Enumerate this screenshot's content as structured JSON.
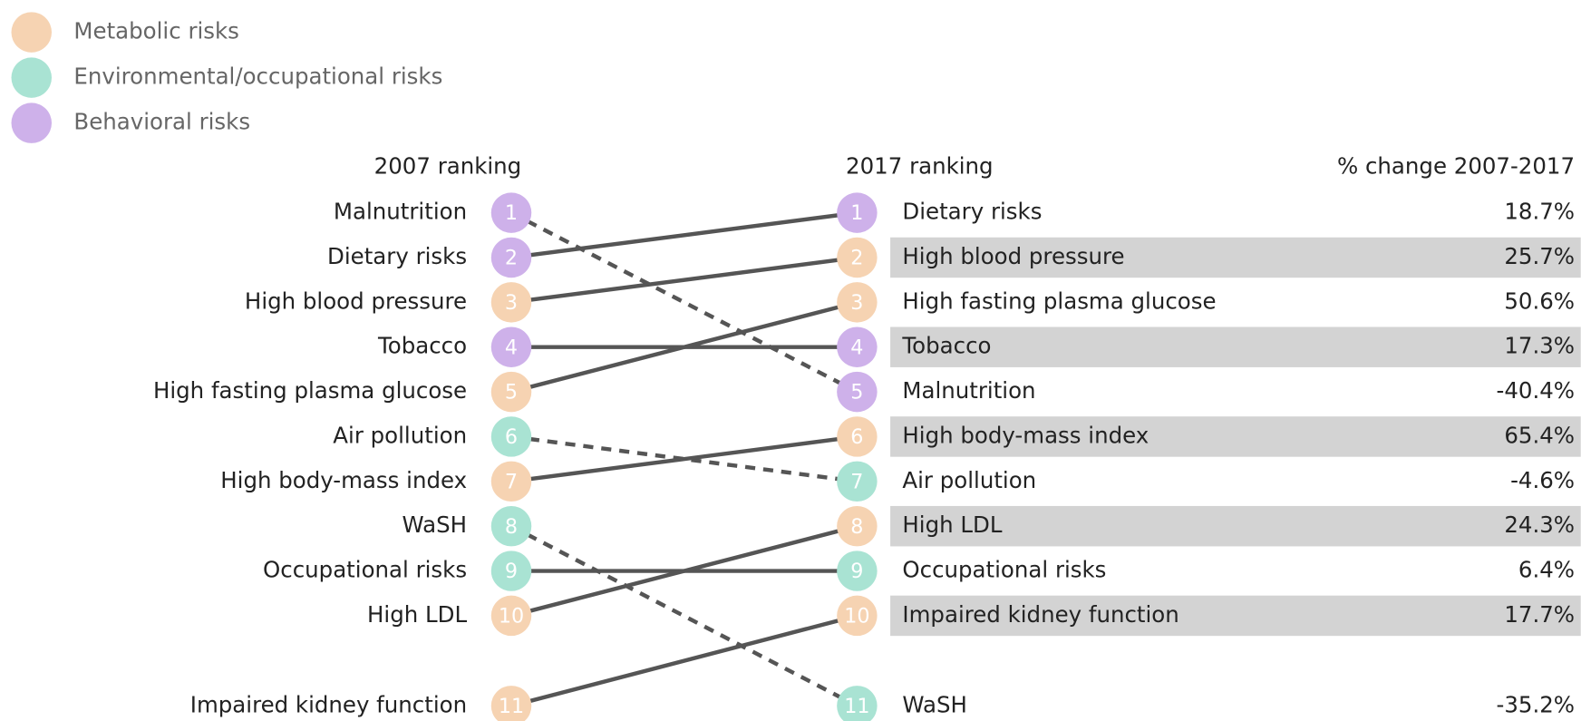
{
  "chart_data": {
    "type": "slope",
    "legend": [
      {
        "name": "Metabolic risks",
        "color": "#f6d3b2"
      },
      {
        "name": "Environmental/occupational risks",
        "color": "#a9e3d3"
      },
      {
        "name": "Behavioral risks",
        "color": "#ceb1ea"
      }
    ],
    "left_title": "2007 ranking",
    "right_title": "2017 ranking",
    "change_title": "% change 2007-2017",
    "left": [
      {
        "name": "Malnutrition",
        "rank": 1,
        "group": 2
      },
      {
        "name": "Dietary risks",
        "rank": 2,
        "group": 2
      },
      {
        "name": "High blood pressure",
        "rank": 3,
        "group": 0
      },
      {
        "name": "Tobacco",
        "rank": 4,
        "group": 2
      },
      {
        "name": "High fasting plasma glucose",
        "rank": 5,
        "group": 0
      },
      {
        "name": "Air pollution",
        "rank": 6,
        "group": 1
      },
      {
        "name": "High body-mass index",
        "rank": 7,
        "group": 0
      },
      {
        "name": "WaSH",
        "rank": 8,
        "group": 1
      },
      {
        "name": "Occupational risks",
        "rank": 9,
        "group": 1
      },
      {
        "name": "High LDL",
        "rank": 10,
        "group": 0
      },
      {
        "name": "Impaired kidney function",
        "rank": 11,
        "group": 0
      }
    ],
    "right": [
      {
        "name": "Dietary risks",
        "rank": 1,
        "group": 2,
        "change": 18.7,
        "change_label": "18.7%"
      },
      {
        "name": "High blood pressure",
        "rank": 2,
        "group": 0,
        "change": 25.7,
        "change_label": "25.7%"
      },
      {
        "name": "High fasting plasma glucose",
        "rank": 3,
        "group": 0,
        "change": 50.6,
        "change_label": "50.6%"
      },
      {
        "name": "Tobacco",
        "rank": 4,
        "group": 2,
        "change": 17.3,
        "change_label": "17.3%"
      },
      {
        "name": "Malnutrition",
        "rank": 5,
        "group": 2,
        "change": -40.4,
        "change_label": "-40.4%"
      },
      {
        "name": "High body-mass index",
        "rank": 6,
        "group": 0,
        "change": 65.4,
        "change_label": "65.4%"
      },
      {
        "name": "Air pollution",
        "rank": 7,
        "group": 1,
        "change": -4.6,
        "change_label": "-4.6%"
      },
      {
        "name": "High LDL",
        "rank": 8,
        "group": 0,
        "change": 24.3,
        "change_label": "24.3%"
      },
      {
        "name": "Occupational risks",
        "rank": 9,
        "group": 1,
        "change": 6.4,
        "change_label": "6.4%"
      },
      {
        "name": "Impaired kidney function",
        "rank": 10,
        "group": 0,
        "change": 17.7,
        "change_label": "17.7%"
      },
      {
        "name": "WaSH",
        "rank": 11,
        "group": 1,
        "change": -35.2,
        "change_label": "-35.2%"
      }
    ]
  }
}
